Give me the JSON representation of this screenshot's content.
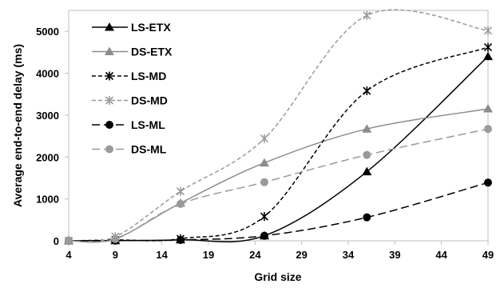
{
  "chart_data": {
    "type": "line",
    "title": "",
    "xlabel": "Grid size",
    "ylabel": "Average end-to-end delay (ms)",
    "xlim": [
      4,
      49
    ],
    "ylim": [
      0,
      5500
    ],
    "xticks": [
      4,
      9,
      14,
      19,
      24,
      29,
      34,
      39,
      44,
      49
    ],
    "yticks": [
      0,
      1000,
      2000,
      3000,
      4000,
      5000
    ],
    "grid": false,
    "legend_position": "top-left",
    "x": [
      4,
      9,
      16,
      25,
      36,
      49
    ],
    "series": [
      {
        "name": "LS-ETX",
        "color": "#000000",
        "dash": "solid",
        "marker": "triangle",
        "values": [
          0,
          5,
          25,
          120,
          1650,
          4400
        ]
      },
      {
        "name": "DS-ETX",
        "color": "#8c8c8c",
        "dash": "solid",
        "marker": "triangle",
        "values": [
          0,
          50,
          900,
          1860,
          2670,
          3150
        ]
      },
      {
        "name": "LS-MD",
        "color": "#000000",
        "dash": "dashed",
        "marker": "asterisk",
        "values": [
          0,
          20,
          50,
          580,
          3580,
          4620
        ]
      },
      {
        "name": "DS-MD",
        "color": "#9a9a9a",
        "dash": "dashed",
        "marker": "asterisk",
        "values": [
          0,
          100,
          1180,
          2440,
          5380,
          5020
        ]
      },
      {
        "name": "LS-ML",
        "color": "#000000",
        "dash": "longdash",
        "marker": "circle",
        "values": [
          0,
          5,
          20,
          120,
          560,
          1390
        ]
      },
      {
        "name": "DS-ML",
        "color": "#9a9a9a",
        "dash": "longdash",
        "marker": "circle",
        "values": [
          0,
          40,
          880,
          1400,
          2050,
          2670
        ]
      }
    ]
  }
}
